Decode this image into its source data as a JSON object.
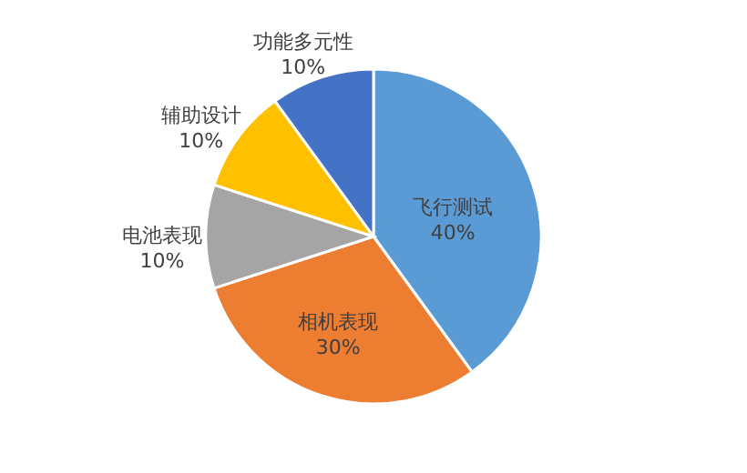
{
  "chart_data": {
    "type": "pie",
    "categories": [
      "飞行测试",
      "相机表现",
      "电池表现",
      "辅助设计",
      "功能多元性"
    ],
    "values": [
      40,
      30,
      10,
      10,
      10
    ],
    "colors": [
      "#5b9bd5",
      "#ed7d31",
      "#a5a5a5",
      "#ffc000",
      "#4472c4"
    ],
    "value_labels": [
      "40%",
      "30%",
      "10%",
      "10%",
      "10%"
    ]
  }
}
